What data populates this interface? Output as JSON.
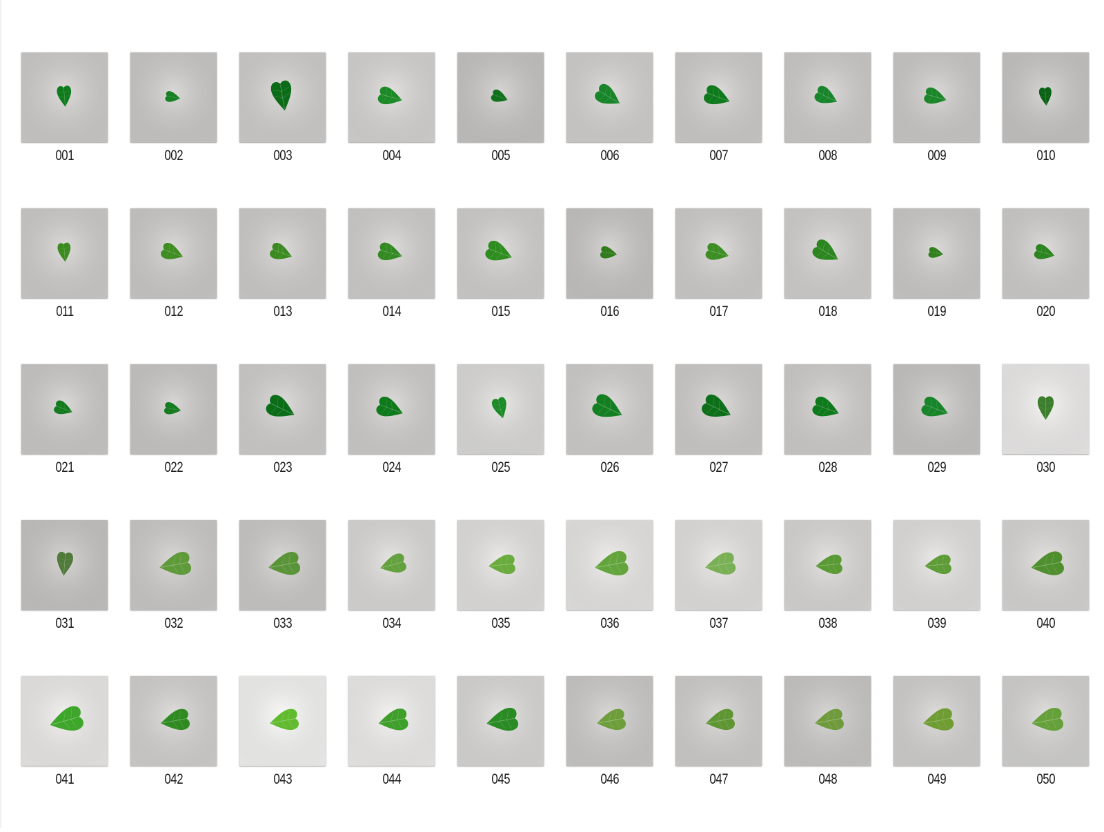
{
  "files": [
    {
      "name": "001",
      "bg": "#d2d0ce",
      "leaf": "#0f7a1c",
      "s": 0.55,
      "rot": -5
    },
    {
      "name": "002",
      "bg": "#cfcdcb",
      "leaf": "#137f20",
      "s": 0.4,
      "rot": -80
    },
    {
      "name": "003",
      "bg": "#d4d2d0",
      "leaf": "#0b6b17",
      "s": 0.78,
      "rot": -10
    },
    {
      "name": "004",
      "bg": "#dad8d6",
      "leaf": "#1c8a26",
      "s": 0.65,
      "rot": -75
    },
    {
      "name": "005",
      "bg": "#cac8c6",
      "leaf": "#0d6f19",
      "s": 0.45,
      "rot": -70
    },
    {
      "name": "006",
      "bg": "#d6d4d2",
      "leaf": "#18852a",
      "s": 0.7,
      "rot": -60
    },
    {
      "name": "007",
      "bg": "#d2d0ce",
      "leaf": "#0f7a1c",
      "s": 0.7,
      "rot": -70
    },
    {
      "name": "008",
      "bg": "#d1cfcd",
      "leaf": "#18852a",
      "s": 0.62,
      "rot": -65
    },
    {
      "name": "009",
      "bg": "#cfcdcb",
      "leaf": "#1b8629",
      "s": 0.6,
      "rot": -75
    },
    {
      "name": "010",
      "bg": "#cbc9c7",
      "leaf": "#0a6215",
      "s": 0.48,
      "rot": -5
    },
    {
      "name": "011",
      "bg": "#d2d0ce",
      "leaf": "#3b8a1f",
      "s": 0.5,
      "rot": -5
    },
    {
      "name": "012",
      "bg": "#d0cecc",
      "leaf": "#3f8c22",
      "s": 0.6,
      "rot": -70
    },
    {
      "name": "013",
      "bg": "#d2d0ce",
      "leaf": "#3a8a20",
      "s": 0.6,
      "rot": -70
    },
    {
      "name": "014",
      "bg": "#d4d2d0",
      "leaf": "#338a22",
      "s": 0.65,
      "rot": -75
    },
    {
      "name": "015",
      "bg": "#d5d3d1",
      "leaf": "#2f8d20",
      "s": 0.72,
      "rot": -70
    },
    {
      "name": "016",
      "bg": "#cac8c6",
      "leaf": "#2f7a1a",
      "s": 0.45,
      "rot": -80
    },
    {
      "name": "017",
      "bg": "#d3d1cf",
      "leaf": "#3c8d24",
      "s": 0.62,
      "rot": -75
    },
    {
      "name": "018",
      "bg": "#d6d4d2",
      "leaf": "#2c8620",
      "s": 0.72,
      "rot": -60
    },
    {
      "name": "019",
      "bg": "#d0cecc",
      "leaf": "#2e7f1c",
      "s": 0.4,
      "rot": -80
    },
    {
      "name": "020",
      "bg": "#d3d1cf",
      "leaf": "#2c8420",
      "s": 0.55,
      "rot": -75
    },
    {
      "name": "021",
      "bg": "#cfcdcb",
      "leaf": "#137a1e",
      "s": 0.5,
      "rot": -70
    },
    {
      "name": "022",
      "bg": "#cdcbc9",
      "leaf": "#137a1e",
      "s": 0.45,
      "rot": -80
    },
    {
      "name": "023",
      "bg": "#d4d2d0",
      "leaf": "#0c6d18",
      "s": 0.78,
      "rot": -65
    },
    {
      "name": "024",
      "bg": "#d3d1cf",
      "leaf": "#0f7a1c",
      "s": 0.72,
      "rot": -70
    },
    {
      "name": "025",
      "bg": "#e0dfdd",
      "leaf": "#1c8a26",
      "s": 0.55,
      "rot": -15
    },
    {
      "name": "026",
      "bg": "#d4d2d0",
      "leaf": "#137f20",
      "s": 0.82,
      "rot": -65
    },
    {
      "name": "027",
      "bg": "#d2d0ce",
      "leaf": "#0d6f19",
      "s": 0.8,
      "rot": -65
    },
    {
      "name": "028",
      "bg": "#d3d1cf",
      "leaf": "#0f7a1c",
      "s": 0.72,
      "rot": -70
    },
    {
      "name": "029",
      "bg": "#cbc9c7",
      "leaf": "#18852a",
      "s": 0.72,
      "rot": -70
    },
    {
      "name": "030",
      "bg": "#f1f0ef",
      "leaf": "#3c7e2c",
      "s": 0.62,
      "rot": 0
    },
    {
      "name": "031",
      "bg": "#cac8c6",
      "leaf": "#4f7a3a",
      "s": 0.62,
      "rot": 5
    },
    {
      "name": "032",
      "bg": "#d0cecc",
      "leaf": "#5f9a3a",
      "s": 0.85,
      "rot": 80
    },
    {
      "name": "033",
      "bg": "#cfcdcb",
      "leaf": "#5a9439",
      "s": 0.85,
      "rot": 80
    },
    {
      "name": "034",
      "bg": "#dedddb",
      "leaf": "#63a03e",
      "s": 0.7,
      "rot": 75
    },
    {
      "name": "035",
      "bg": "#e6e5e3",
      "leaf": "#6aab3d",
      "s": 0.72,
      "rot": 85
    },
    {
      "name": "036",
      "bg": "#ebeae8",
      "leaf": "#63a53c",
      "s": 0.9,
      "rot": 80
    },
    {
      "name": "037",
      "bg": "#e6e5e3",
      "leaf": "#7ab055",
      "s": 0.82,
      "rot": 80
    },
    {
      "name": "038",
      "bg": "#dcdbd9",
      "leaf": "#5a9a35",
      "s": 0.72,
      "rot": 85
    },
    {
      "name": "039",
      "bg": "#e5e4e2",
      "leaf": "#5e9c37",
      "s": 0.72,
      "rot": 85
    },
    {
      "name": "040",
      "bg": "#dbdad8",
      "leaf": "#4f8f2e",
      "s": 0.88,
      "rot": 80
    },
    {
      "name": "041",
      "bg": "#efeeec",
      "leaf": "#3ea62a",
      "s": 0.9,
      "rot": 75
    },
    {
      "name": "042",
      "bg": "#d6d5d3",
      "leaf": "#2f8a22",
      "s": 0.78,
      "rot": 80
    },
    {
      "name": "043",
      "bg": "#f8f8f7",
      "leaf": "#62bb2f",
      "s": 0.78,
      "rot": 80
    },
    {
      "name": "044",
      "bg": "#f2f1f0",
      "leaf": "#3f9f2b",
      "s": 0.8,
      "rot": 80
    },
    {
      "name": "045",
      "bg": "#dddcda",
      "leaf": "#2a8a23",
      "s": 0.85,
      "rot": 80
    },
    {
      "name": "046",
      "bg": "#cfcecc",
      "leaf": "#6e9e3b",
      "s": 0.78,
      "rot": 80
    },
    {
      "name": "047",
      "bg": "#d3d2d0",
      "leaf": "#5f9533",
      "s": 0.78,
      "rot": 80
    },
    {
      "name": "048",
      "bg": "#cdccca",
      "leaf": "#6f9b3d",
      "s": 0.78,
      "rot": 80
    },
    {
      "name": "049",
      "bg": "#d5d4d2",
      "leaf": "#6f9c33",
      "s": 0.82,
      "rot": 80
    },
    {
      "name": "050",
      "bg": "#d7d6d4",
      "leaf": "#66a03a",
      "s": 0.85,
      "rot": 80
    }
  ]
}
